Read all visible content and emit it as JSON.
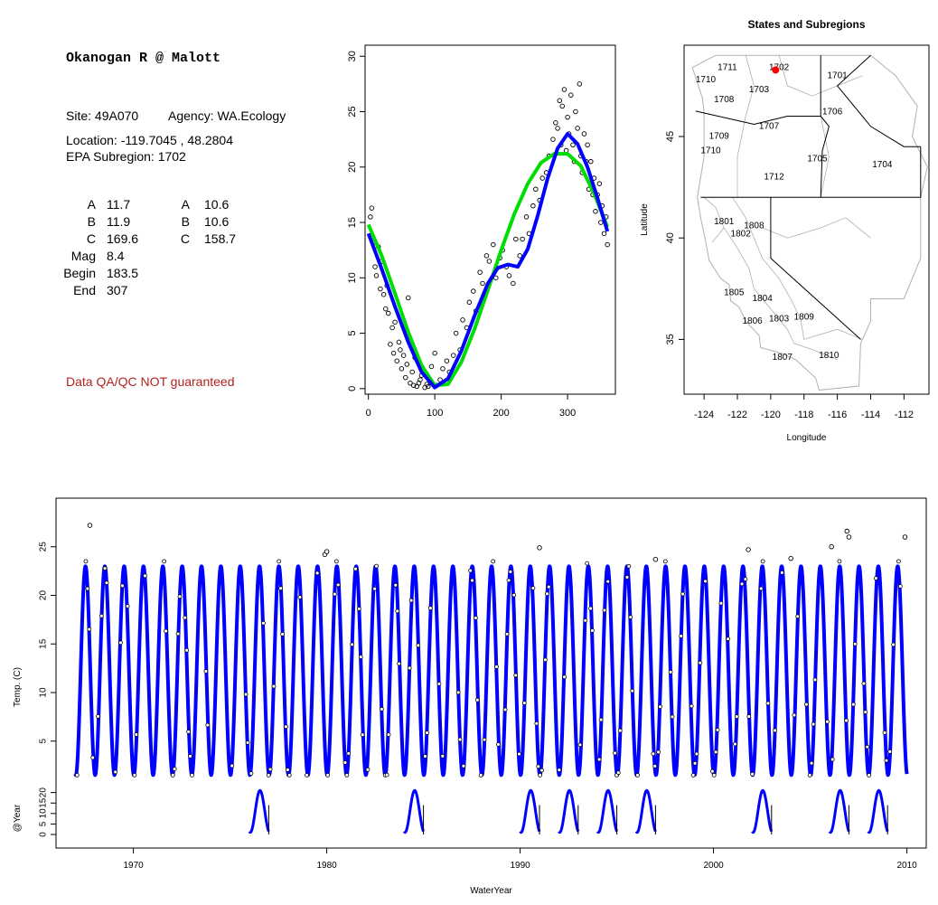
{
  "info": {
    "title": "Okanogan R @ Malott",
    "site": "Site: 49A070",
    "agency": "Agency: WA.Ecology",
    "location": "Location: -119.7045 , 48.2804",
    "subregion": "EPA Subregion: 1702",
    "params_col1": [
      {
        "label": "A",
        "value": "11.7"
      },
      {
        "label": "B",
        "value": "11.9"
      },
      {
        "label": "C",
        "value": "169.6"
      },
      {
        "label": "Mag",
        "value": "8.4"
      },
      {
        "label": "Begin",
        "value": "183.5"
      },
      {
        "label": "End",
        "value": "307"
      }
    ],
    "params_col2": [
      {
        "label": "A",
        "value": "10.6"
      },
      {
        "label": "B",
        "value": "10.6"
      },
      {
        "label": "C",
        "value": "158.7"
      }
    ],
    "warning": "Data QA/QC NOT guaranteed"
  },
  "colors": {
    "fit_blue": "#0000ff",
    "fit_green": "#00dd00",
    "warning": "#b22222",
    "site_marker": "#ff0000",
    "map_lines": "#b0b0b0"
  },
  "chart_data": [
    {
      "type": "scatter",
      "title": "",
      "xlabel": "",
      "ylabel": "",
      "xlim": [
        -5,
        372
      ],
      "ylim": [
        -0.5,
        31
      ],
      "xticks": [
        0,
        100,
        200,
        300
      ],
      "yticks": [
        0,
        5,
        10,
        15,
        20,
        25,
        30
      ],
      "series": [
        {
          "kind": "points",
          "x": [
            3,
            5,
            8,
            10,
            12,
            15,
            18,
            20,
            23,
            26,
            28,
            30,
            33,
            36,
            38,
            40,
            43,
            46,
            48,
            50,
            53,
            56,
            58,
            60,
            63,
            66,
            68,
            70,
            73,
            76,
            78,
            80,
            85,
            88,
            90,
            95,
            100,
            103,
            108,
            112,
            118,
            122,
            128,
            132,
            138,
            142,
            148,
            152,
            158,
            162,
            168,
            172,
            178,
            182,
            188,
            192,
            198,
            202,
            208,
            212,
            218,
            222,
            228,
            232,
            238,
            242,
            248,
            252,
            258,
            262,
            268,
            272,
            278,
            282,
            285,
            288,
            290,
            292,
            295,
            298,
            300,
            302,
            305,
            308,
            310,
            312,
            315,
            318,
            320,
            322,
            325,
            328,
            330,
            332,
            335,
            338,
            340,
            342,
            345,
            348,
            350,
            352,
            355,
            358,
            360
          ],
          "y": [
            15.5,
            16.3,
            13.2,
            11.0,
            10.2,
            12.8,
            9.0,
            11.5,
            8.5,
            7.2,
            9.3,
            6.8,
            4.0,
            5.5,
            3.2,
            6.0,
            2.5,
            4.2,
            3.5,
            1.8,
            3.0,
            1.0,
            2.2,
            8.2,
            0.5,
            1.5,
            0.3,
            2.8,
            0.2,
            0.5,
            0.8,
            1.2,
            0.1,
            0.4,
            0.2,
            2.0,
            3.2,
            0.3,
            0.8,
            1.8,
            2.5,
            1.5,
            3.0,
            5.0,
            3.5,
            6.2,
            5.5,
            7.8,
            8.8,
            7.0,
            10.5,
            9.5,
            12.0,
            11.5,
            13.0,
            10.0,
            11.8,
            12.5,
            11.0,
            10.2,
            9.5,
            13.5,
            12.0,
            13.5,
            15.5,
            14.0,
            16.5,
            18.0,
            17.0,
            19.0,
            19.5,
            21.0,
            22.5,
            24.0,
            23.5,
            26.0,
            22.0,
            25.5,
            27.0,
            21.5,
            24.5,
            23.0,
            26.5,
            22.0,
            20.5,
            25.0,
            23.5,
            27.5,
            21.0,
            19.5,
            23.0,
            20.5,
            22.0,
            18.0,
            20.5,
            17.5,
            19.0,
            16.0,
            17.5,
            18.5,
            15.0,
            16.5,
            14.0,
            15.5,
            13.0
          ]
        },
        {
          "kind": "line",
          "name": "",
          "color_key": "fit_green",
          "x": [
            0,
            20,
            40,
            60,
            80,
            100,
            120,
            140,
            160,
            180,
            200,
            220,
            240,
            260,
            280,
            300,
            320,
            340,
            360
          ],
          "y": [
            14.8,
            12.0,
            8.6,
            5.1,
            2.1,
            0.3,
            0.4,
            2.4,
            5.4,
            8.9,
            12.5,
            15.8,
            18.5,
            20.4,
            21.2,
            21.2,
            20.1,
            17.6,
            14.6
          ]
        },
        {
          "kind": "line",
          "name": "",
          "color_key": "fit_blue",
          "x": [
            0,
            20,
            40,
            60,
            80,
            100,
            120,
            140,
            160,
            180,
            195,
            210,
            225,
            240,
            255,
            270,
            285,
            300,
            315,
            330,
            345,
            360
          ],
          "y": [
            14.0,
            10.8,
            7.4,
            4.2,
            1.5,
            0.1,
            0.9,
            3.4,
            6.6,
            9.5,
            10.9,
            11.2,
            11.0,
            12.6,
            15.6,
            19.0,
            21.7,
            23.0,
            22.1,
            20.0,
            17.2,
            14.2
          ]
        }
      ]
    },
    {
      "type": "map",
      "title": "States and Subregions",
      "xlabel": "Longitude",
      "ylabel": "Latitude",
      "xlim": [
        -125.2,
        -110.5
      ],
      "ylim": [
        32.3,
        49.5
      ],
      "xticks": [
        -124,
        -122,
        -120,
        -118,
        -116,
        -114,
        -112
      ],
      "yticks": [
        35,
        40,
        45
      ],
      "region_labels": [
        {
          "text": "1702",
          "lon": -119.5,
          "lat": 48.4
        },
        {
          "text": "1701",
          "lon": -116.0,
          "lat": 48.0
        },
        {
          "text": "1711",
          "lon": -122.6,
          "lat": 48.4
        },
        {
          "text": "1710",
          "lon": -123.9,
          "lat": 47.8
        },
        {
          "text": "1703",
          "lon": -120.7,
          "lat": 47.3
        },
        {
          "text": "1708",
          "lon": -122.8,
          "lat": 46.8
        },
        {
          "text": "1706",
          "lon": -116.3,
          "lat": 46.2
        },
        {
          "text": "1707",
          "lon": -120.1,
          "lat": 45.5
        },
        {
          "text": "1709",
          "lon": -123.1,
          "lat": 45.0
        },
        {
          "text": "1710",
          "lon": -123.6,
          "lat": 44.3
        },
        {
          "text": "1705",
          "lon": -117.2,
          "lat": 43.9
        },
        {
          "text": "1704",
          "lon": -113.3,
          "lat": 43.6
        },
        {
          "text": "1712",
          "lon": -119.8,
          "lat": 43.0
        },
        {
          "text": "1801",
          "lon": -122.8,
          "lat": 40.8
        },
        {
          "text": "1808",
          "lon": -121.0,
          "lat": 40.6
        },
        {
          "text": "1802",
          "lon": -121.8,
          "lat": 40.2
        },
        {
          "text": "1805",
          "lon": -122.2,
          "lat": 37.3
        },
        {
          "text": "1804",
          "lon": -120.5,
          "lat": 37.0
        },
        {
          "text": "1806",
          "lon": -121.1,
          "lat": 35.9
        },
        {
          "text": "1803",
          "lon": -119.5,
          "lat": 36.0
        },
        {
          "text": "1809",
          "lon": -118.0,
          "lat": 36.1
        },
        {
          "text": "1807",
          "lon": -119.3,
          "lat": 34.1
        },
        {
          "text": "1810",
          "lon": -116.5,
          "lat": 34.2
        }
      ],
      "site": {
        "lon": -119.7045,
        "lat": 48.2804
      }
    },
    {
      "type": "line",
      "title": "",
      "xlabel": "WaterYear",
      "ylabel": "Temp. (C)",
      "ylabel2": "@Year",
      "xlim": [
        1966.0,
        2011.0
      ],
      "ylim": [
        -6,
        30
      ],
      "xticks": [
        1970,
        1980,
        1990,
        2000,
        2010
      ],
      "yticks": [
        5,
        10,
        15,
        20,
        25
      ],
      "yticks2": [
        0,
        5,
        10,
        15,
        20
      ],
      "start": 1967.0,
      "end": 2010.0,
      "fit_min": 1.5,
      "fit_max": 23.0,
      "outliers": [
        {
          "x": 1967.75,
          "y": 27.2
        },
        {
          "x": 1979.9,
          "y": 24.2
        },
        {
          "x": 1980.0,
          "y": 24.5
        },
        {
          "x": 1991.0,
          "y": 24.9
        },
        {
          "x": 1997.0,
          "y": 23.7
        },
        {
          "x": 2001.8,
          "y": 24.7
        },
        {
          "x": 2004.0,
          "y": 23.8
        },
        {
          "x": 2006.1,
          "y": 25.0
        },
        {
          "x": 2006.9,
          "y": 26.6
        },
        {
          "x": 2007.0,
          "y": 26.0
        },
        {
          "x": 2009.9,
          "y": 26.0
        }
      ],
      "sub_years": [
        1976,
        1984,
        1990,
        1992,
        1994,
        1996,
        2002,
        2006,
        2008
      ]
    }
  ]
}
